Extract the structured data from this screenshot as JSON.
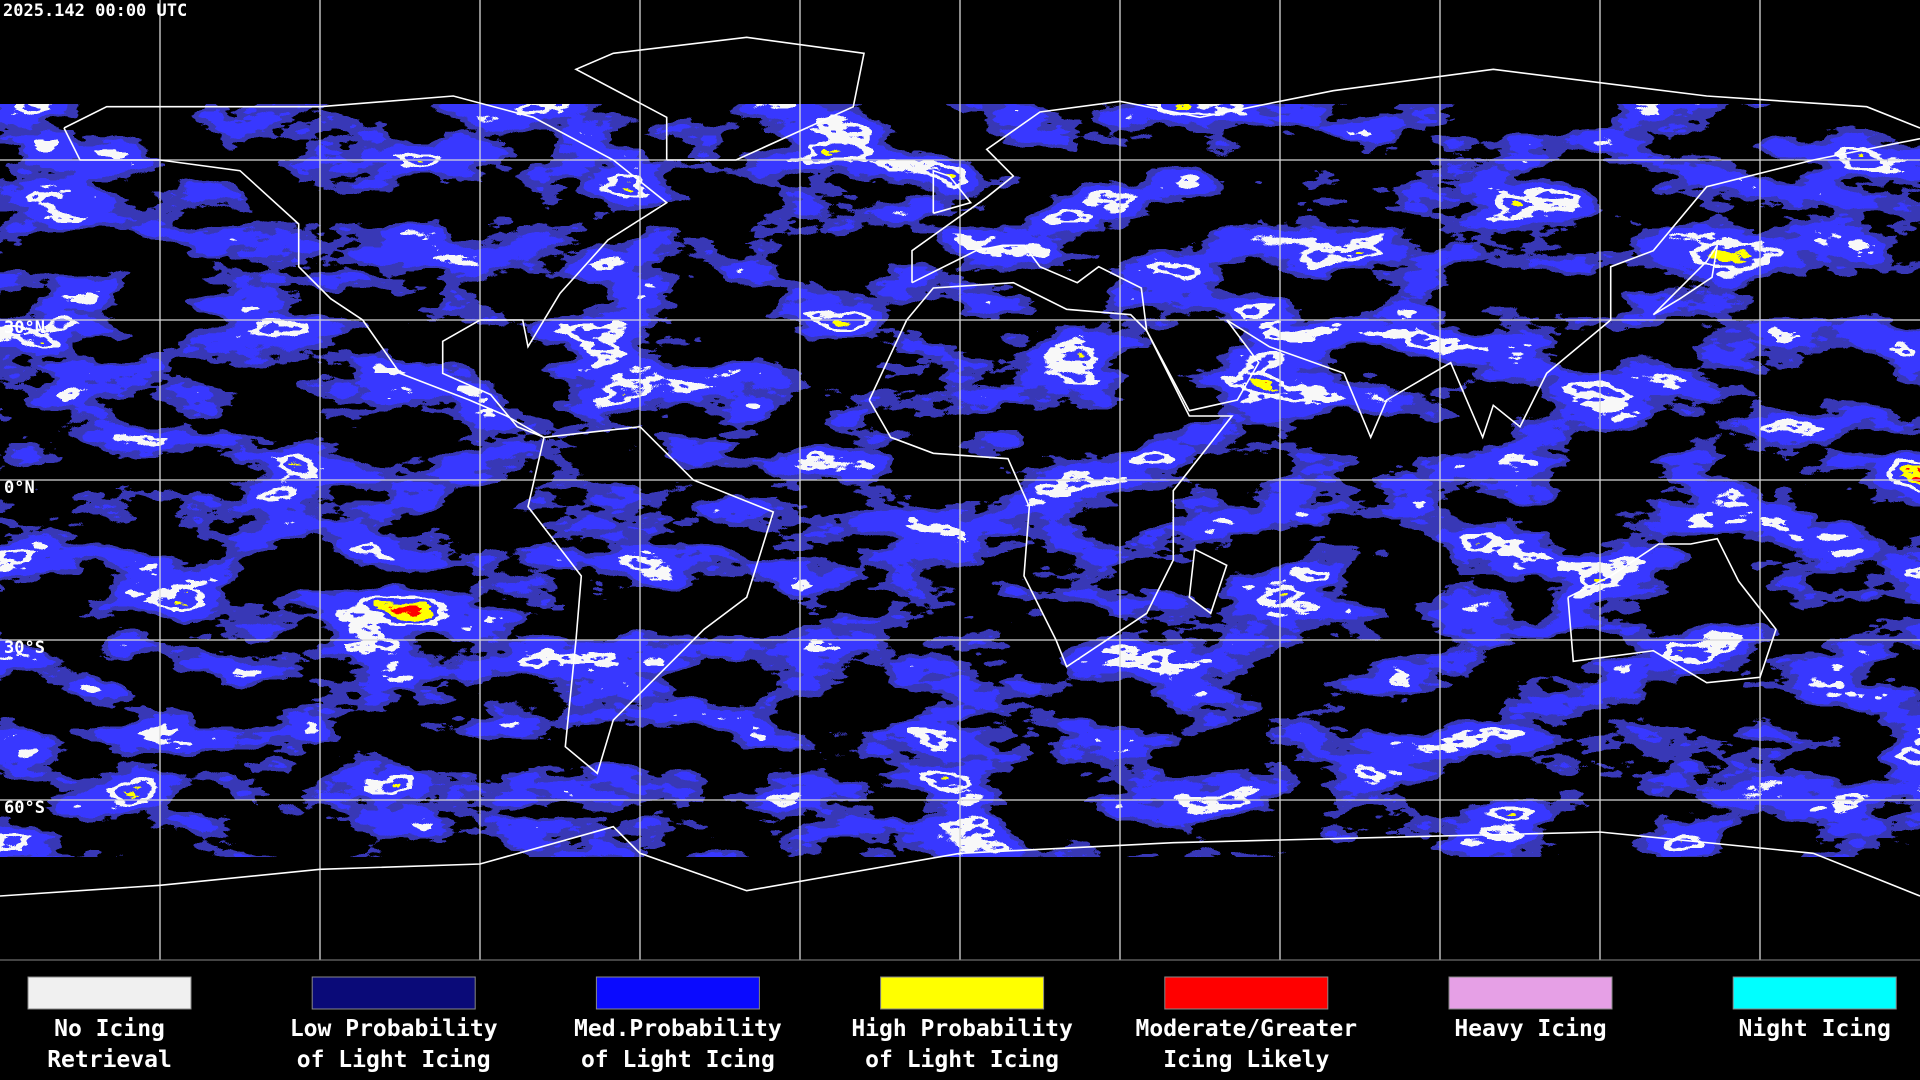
{
  "header": {
    "timestamp": "2025.142 00:00 UTC"
  },
  "map": {
    "lat_labels": [
      "30°N",
      "0°N",
      "30°S",
      "60°S"
    ]
  },
  "legend": [
    {
      "label": [
        "No Icing",
        "Retrieval"
      ],
      "color": "#f0f0f0"
    },
    {
      "label": [
        "Low Probability",
        "of Light Icing"
      ],
      "color": "#0a0a78"
    },
    {
      "label": [
        "Med.Probability",
        "of Light Icing"
      ],
      "color": "#0a0aff"
    },
    {
      "label": [
        "High Probability",
        "of Light Icing"
      ],
      "color": "#ffff00"
    },
    {
      "label": [
        "Moderate/Greater",
        "Icing Likely"
      ],
      "color": "#ff0000"
    },
    {
      "label": [
        "Heavy Icing"
      ],
      "color": "#e6a0e6"
    },
    {
      "label": [
        "Night Icing"
      ],
      "color": "#00ffff"
    }
  ]
}
